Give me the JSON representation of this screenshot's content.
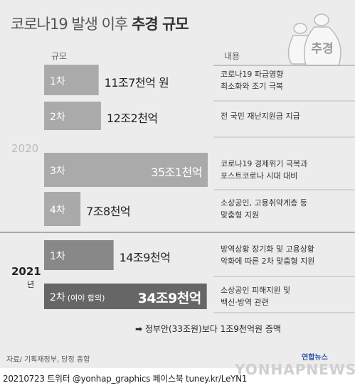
{
  "title": {
    "normal": "코로나19 발생 이후",
    "bold": "추경 규모"
  },
  "icon_label": "추경",
  "headers": {
    "scale": "규모",
    "content": "내용"
  },
  "years": {
    "y2020": "2020",
    "y2021": "2021",
    "y2021_suffix": "년"
  },
  "chart_data": {
    "type": "bar",
    "orientation": "horizontal",
    "unit": "억 원",
    "categories": [
      "2020 1차",
      "2020 2차",
      "2020 3차",
      "2020 4차",
      "2021 1차",
      "2021 2차"
    ],
    "values": [
      117000,
      122000,
      351000,
      78000,
      149000,
      349000
    ],
    "bars": [
      {
        "year": "2020",
        "label": "1차",
        "amount": 117000,
        "value_text": "11조7천억 원",
        "desc": "코로나19 파급영향\n최소화와 조기 극복"
      },
      {
        "year": "2020",
        "label": "2차",
        "amount": 122000,
        "value_text": "12조2천억",
        "desc": "전 국민 재난지원금 지급"
      },
      {
        "year": "2020",
        "label": "3차",
        "amount": 351000,
        "value_text": "35조1천억",
        "desc": "코로나19 경제위기 극복과\n포스트코로나 시대 대비"
      },
      {
        "year": "2020",
        "label": "4차",
        "amount": 78000,
        "value_text": "7조8천억",
        "desc": "소상공인, 고용취약계층 등\n맞춤형 지원"
      },
      {
        "year": "2021",
        "label": "1차",
        "amount": 149000,
        "value_text": "14조9천억",
        "desc": "방역상황 장기화 및 고용상황\n악화에 따른 2차 맞춤형 지원"
      },
      {
        "year": "2021",
        "label": "2차",
        "sub_label": "(여야 합의)",
        "amount": 349000,
        "value_text": "34조9천억",
        "desc": "소상공인 피해지원 및\n백신·방역 관련"
      }
    ],
    "colors": {
      "y2020": "#aaaaaa",
      "y2021": "#888888",
      "highlight": "#666666"
    }
  },
  "note": "➡ 정부안(33조원)보다 1조9천억원 증액",
  "source": "자료/ 기획재정부, 당정 종합",
  "footer": "20210723 트위터 @yonhap_graphics  페이스북 tuney.kr/LeYN1",
  "brand": "연합뉴스",
  "watermark": "YONHAPNEWS"
}
